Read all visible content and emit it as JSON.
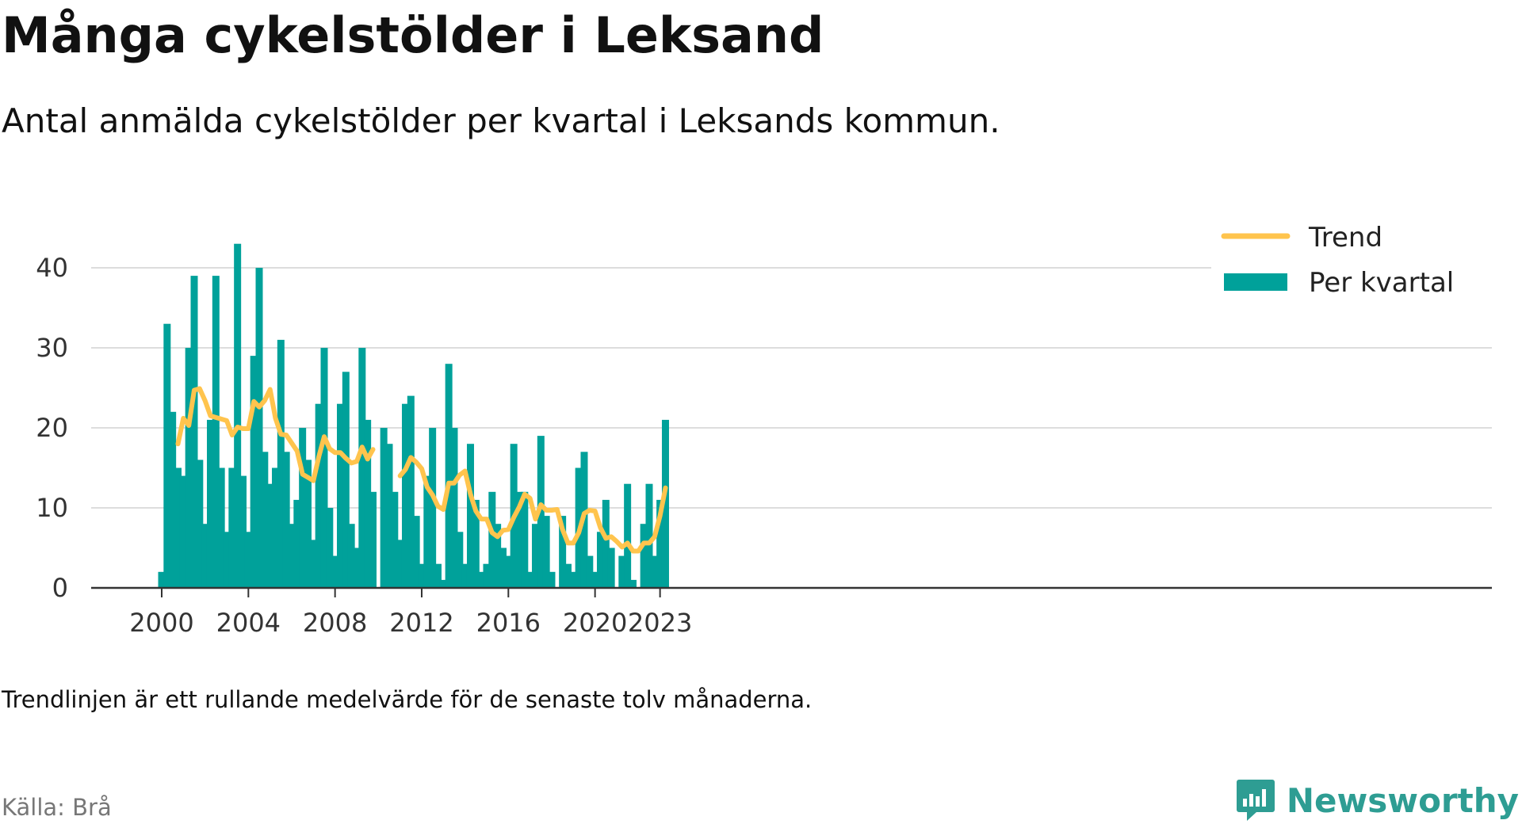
{
  "header": {
    "title": "Många cykelstölder i Leksand",
    "subtitle": "Antal anmälda cykelstölder per kvartal i Leksands kommun."
  },
  "footer": {
    "note": "Trendlinjen är ett rullande medelvärde för de senaste tolv månaderna.",
    "source": "Källa: Brå",
    "brand": "Newsworthy"
  },
  "colors": {
    "bars": "#00a19a",
    "trend": "#ffc44d",
    "grid": "#dddddd",
    "brand": "#2e9d93"
  },
  "chart_data": {
    "type": "bar",
    "ylim": [
      0,
      45
    ],
    "yticks": [
      0,
      10,
      20,
      30,
      40
    ],
    "xticks": [
      "2000",
      "2004",
      "2008",
      "2012",
      "2016",
      "2020",
      "2023"
    ],
    "legend": {
      "placement": "top-right",
      "entries": [
        "Trend",
        "Per kvartal"
      ]
    },
    "grid": true,
    "x": [
      "2000Q1",
      "2000Q2",
      "2000Q3",
      "2000Q4",
      "2001Q1",
      "2001Q2",
      "2001Q3",
      "2001Q4",
      "2002Q1",
      "2002Q2",
      "2002Q3",
      "2002Q4",
      "2003Q1",
      "2003Q2",
      "2003Q3",
      "2003Q4",
      "2004Q1",
      "2004Q2",
      "2004Q3",
      "2004Q4",
      "2005Q1",
      "2005Q2",
      "2005Q3",
      "2005Q4",
      "2006Q1",
      "2006Q2",
      "2006Q3",
      "2006Q4",
      "2007Q1",
      "2007Q2",
      "2007Q3",
      "2007Q4",
      "2008Q1",
      "2008Q2",
      "2008Q3",
      "2008Q4",
      "2009Q1",
      "2009Q2",
      "2009Q3",
      "2009Q4",
      "2010Q1",
      "2010Q2",
      "2010Q3",
      "2010Q4",
      "2011Q1",
      "2011Q2",
      "2011Q3",
      "2011Q4",
      "2012Q1",
      "2012Q2",
      "2012Q3",
      "2012Q4",
      "2013Q1",
      "2013Q2",
      "2013Q3",
      "2013Q4",
      "2014Q1",
      "2014Q2",
      "2014Q3",
      "2014Q4",
      "2015Q1",
      "2015Q2",
      "2015Q3",
      "2015Q4",
      "2016Q1",
      "2016Q2",
      "2016Q3",
      "2016Q4",
      "2017Q1",
      "2017Q2",
      "2017Q3",
      "2017Q4",
      "2018Q1",
      "2018Q2",
      "2018Q3",
      "2018Q4",
      "2019Q1",
      "2019Q2",
      "2019Q3",
      "2019Q4",
      "2020Q1",
      "2020Q2",
      "2020Q3",
      "2020Q4",
      "2021Q1",
      "2021Q2",
      "2021Q3",
      "2021Q4",
      "2022Q1",
      "2022Q2",
      "2022Q3",
      "2022Q4",
      "2023Q1",
      "2023Q2"
    ],
    "series": [
      {
        "name": "Per kvartal",
        "values": [
          2,
          33,
          22,
          15,
          14,
          30,
          39,
          16,
          8,
          21,
          39,
          15,
          7,
          15,
          43,
          14,
          7,
          29,
          40,
          17,
          13,
          15,
          31,
          17,
          8,
          11,
          20,
          16,
          6,
          23,
          30,
          10,
          4,
          23,
          27,
          8,
          5,
          30,
          21,
          12,
          null,
          20,
          18,
          12,
          6,
          23,
          24,
          9,
          3,
          14,
          20,
          3,
          1,
          28,
          20,
          7,
          3,
          18,
          11,
          2,
          3,
          12,
          8,
          5,
          4,
          18,
          12,
          12,
          2,
          8,
          19,
          9,
          2,
          null,
          9,
          3,
          2,
          15,
          17,
          4,
          2,
          7,
          11,
          5,
          null,
          4,
          13,
          1,
          null,
          8,
          13,
          4,
          11,
          21
        ]
      },
      {
        "name": "Trend",
        "values": [
          null,
          null,
          null,
          18,
          21.2,
          20.3,
          24.7,
          24.9,
          23.4,
          21.5,
          21.3,
          21.1,
          20.9,
          19.1,
          20.1,
          19.9,
          19.9,
          23.3,
          22.6,
          23.4,
          24.8,
          21.2,
          19.2,
          19.1,
          18.1,
          17.1,
          14.2,
          13.8,
          13.4,
          16.4,
          18.9,
          17.4,
          16.9,
          16.9,
          16.2,
          15.6,
          15.8,
          17.6,
          16.1,
          17.3,
          null,
          null,
          null,
          null,
          14,
          14.8,
          16.3,
          15.7,
          14.9,
          12.6,
          11.6,
          10.2,
          9.8,
          13.1,
          13.1,
          14.1,
          14.6,
          11.7,
          9.6,
          8.6,
          8.6,
          6.9,
          6.4,
          7.2,
          7.3,
          8.8,
          10.1,
          11.7,
          11.2,
          8.6,
          10.4,
          9.7,
          9.7,
          9.8,
          7.3,
          5.6,
          5.6,
          6.9,
          9.3,
          9.7,
          9.6,
          7.5,
          6.2,
          6.4,
          5.8,
          5.1,
          5.6,
          4.6,
          4.6,
          5.6,
          5.6,
          6.4,
          9,
          12.5
        ]
      }
    ]
  }
}
